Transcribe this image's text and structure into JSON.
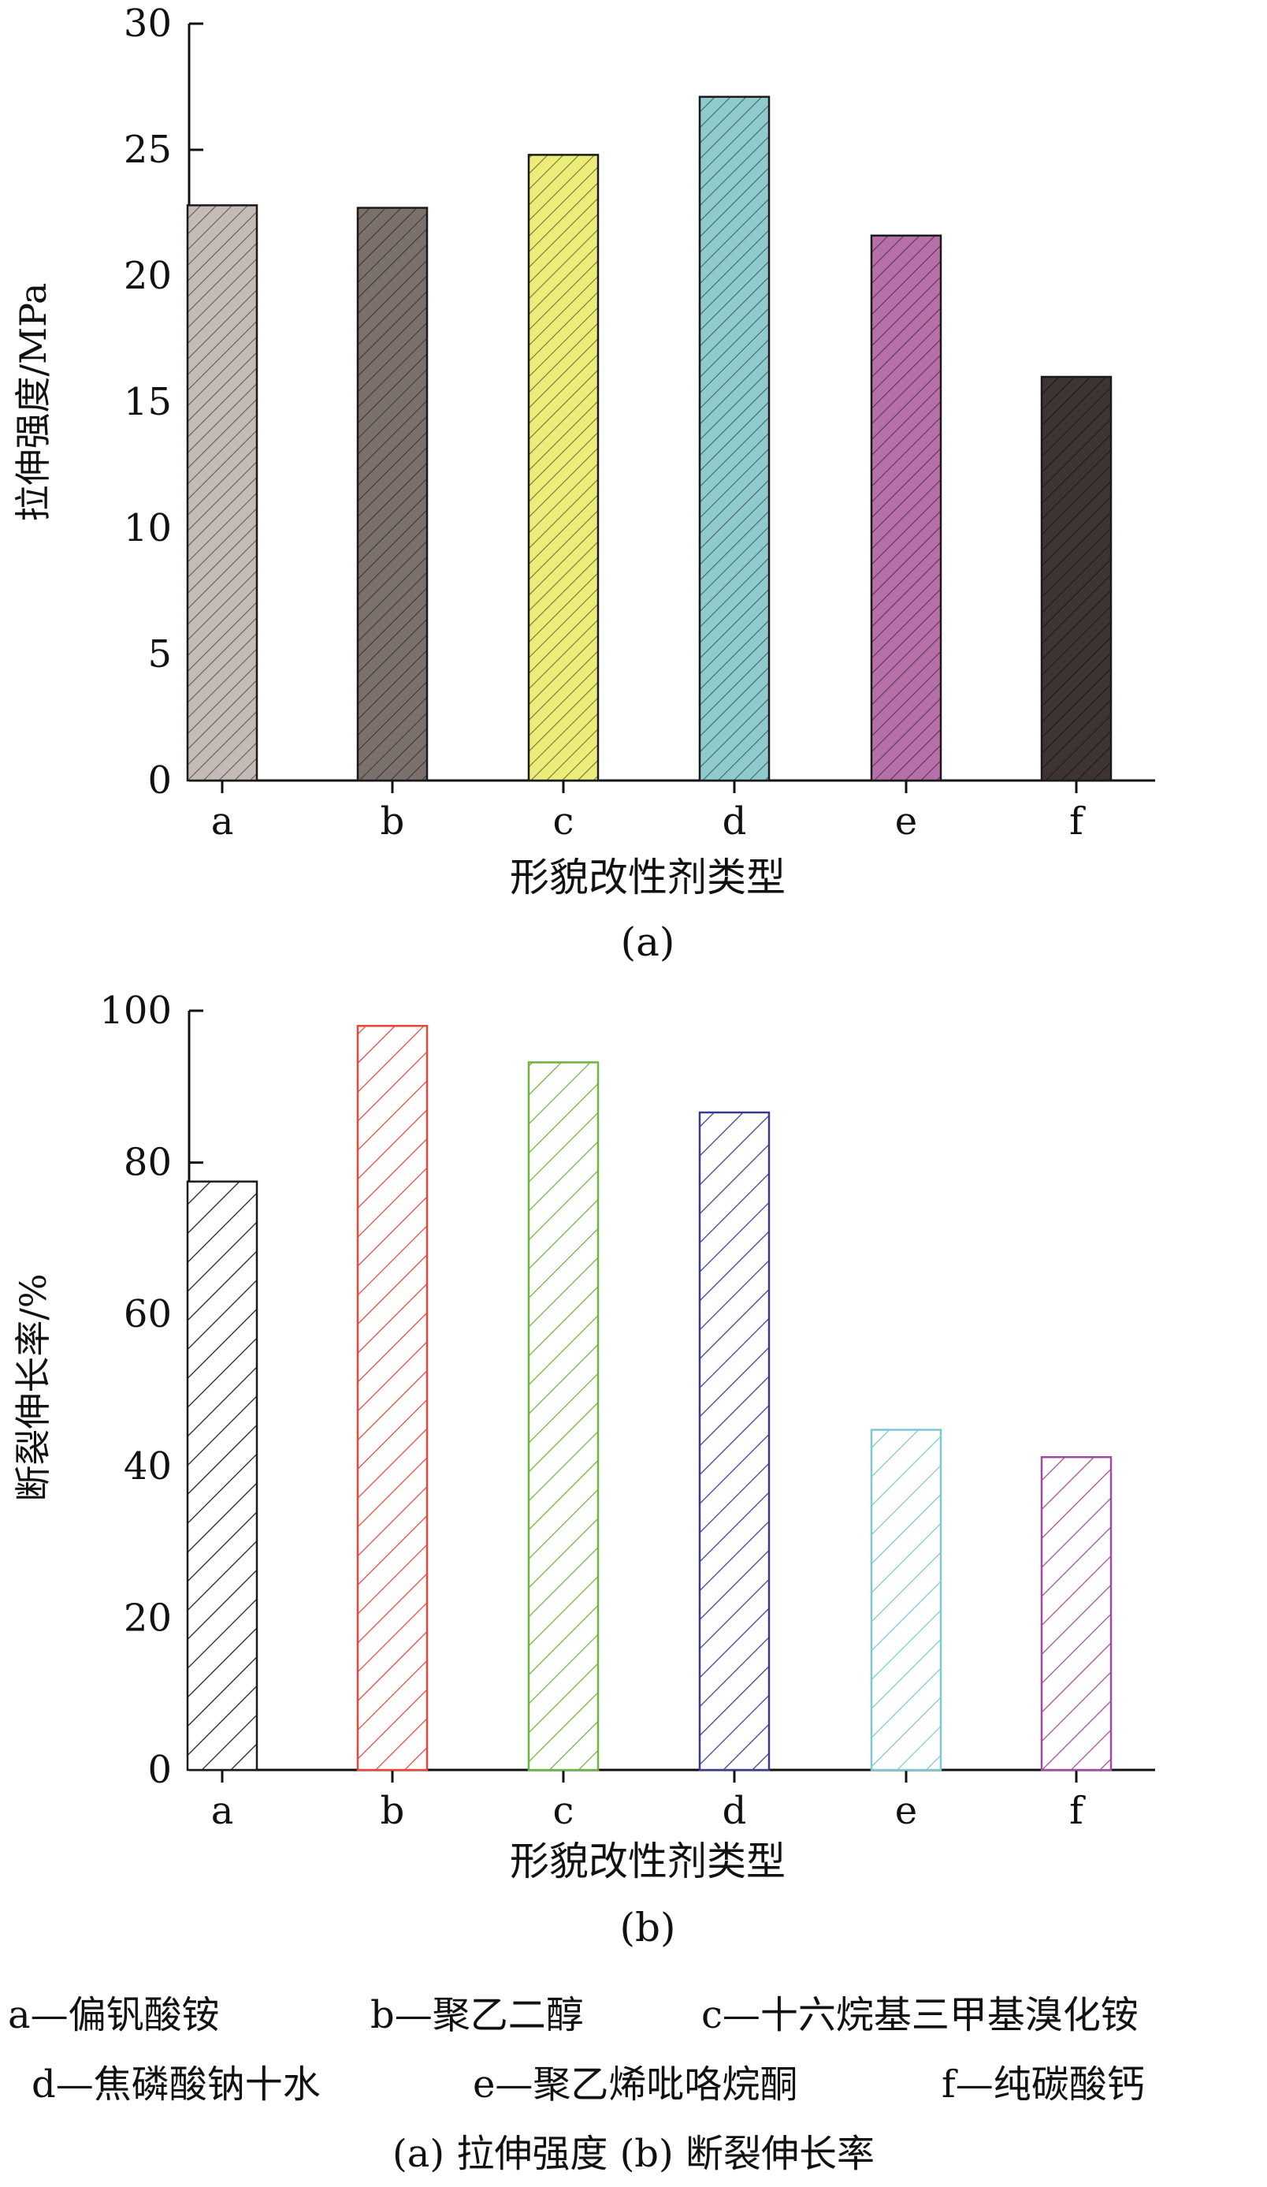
{
  "chart_data": [
    {
      "type": "bar",
      "categories": [
        "a",
        "b",
        "c",
        "d",
        "e",
        "f"
      ],
      "values": [
        22.8,
        22.7,
        24.8,
        27.1,
        21.6,
        16.0
      ],
      "title": "",
      "xlabel": "形貌改性剂类型",
      "ylabel": "拉伸强度/MPa",
      "ylim": [
        0,
        30
      ],
      "yticks": [
        0,
        5,
        10,
        15,
        20,
        25,
        30
      ],
      "panel_label": "(a)",
      "fill": "solid with hatching",
      "bar_colors": [
        "#c4bbb6",
        "#7b706c",
        "#ecec7a",
        "#8fcbcd",
        "#b66fa9",
        "#3e3431"
      ],
      "grid": false
    },
    {
      "type": "bar",
      "categories": [
        "a",
        "b",
        "c",
        "d",
        "e",
        "f"
      ],
      "values": [
        77.5,
        98.0,
        93.2,
        86.6,
        44.8,
        41.2
      ],
      "title": "",
      "xlabel": "形貌改性剂类型",
      "ylabel": "断裂伸长率/%",
      "ylim": [
        0,
        100
      ],
      "yticks": [
        0,
        20,
        40,
        60,
        80,
        100
      ],
      "panel_label": "(b)",
      "fill": "white with colored hatching",
      "bar_colors": [
        "#1a1a1a",
        "#e8463a",
        "#6db33f",
        "#3a3a8c",
        "#7ec7d1",
        "#a04a9e"
      ],
      "grid": false
    }
  ],
  "legend": {
    "row1": [
      "a—偏钒酸铵",
      "b—聚乙二醇",
      "c—十六烷基三甲基溴化铵"
    ],
    "row2": [
      "d—焦磷酸钠十水",
      "e—聚乙烯吡咯烷酮",
      "f—纯碳酸钙"
    ]
  },
  "caption": "(a) 拉伸强度    (b) 断裂伸长率"
}
